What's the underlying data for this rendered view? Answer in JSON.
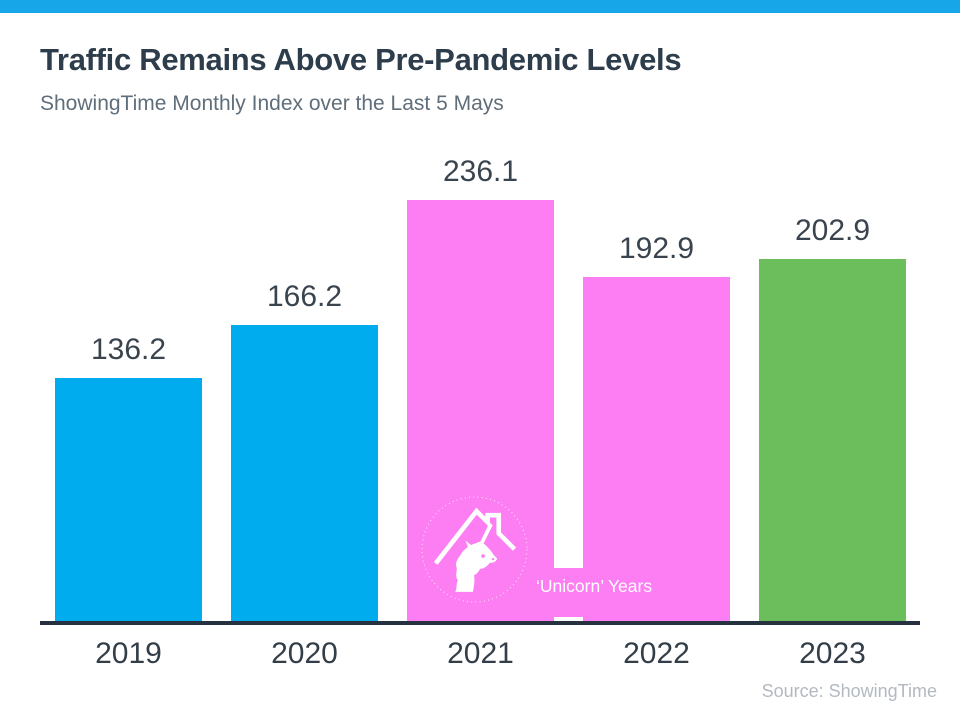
{
  "page": {
    "title": "Traffic Remains Above Pre-Pandemic Levels",
    "subtitle": "ShowingTime Monthly Index over the Last 5 Mays",
    "source": "Source: ShowingTime"
  },
  "annotation": {
    "label": "‘Unicorn’ Years",
    "logo": "unicorn-house-logo",
    "applies_to": [
      "2021",
      "2022"
    ]
  },
  "colors": {
    "top_strip": "#17A7E9",
    "blue_bar": "#00ACEE",
    "pink_bar": "#FD7DF2",
    "green_bar": "#6CBE5C",
    "axis": "#263240",
    "title_text": "#2E3D4B",
    "subtitle_text": "#5F6E7A",
    "label_text": "#3A444E",
    "source_text": "#B2B9C0",
    "annotation_text": "#FFFFFF"
  },
  "chart_data": {
    "type": "bar",
    "categories": [
      "2019",
      "2020",
      "2021",
      "2022",
      "2023"
    ],
    "values": [
      136.2,
      166.2,
      236.1,
      192.9,
      202.9
    ],
    "bar_colors": [
      "#00ACEE",
      "#00ACEE",
      "#FD7DF2",
      "#FD7DF2",
      "#6CBE5C"
    ],
    "title": "Traffic Remains Above Pre-Pandemic Levels",
    "subtitle": "ShowingTime Monthly Index over the Last 5 Mays",
    "xlabel": "",
    "ylabel": "",
    "ylim": [
      0,
      250
    ],
    "grid": false,
    "legend": false,
    "value_labels_shown": true,
    "annotation": {
      "text": "‘Unicorn’ Years",
      "applies_to": [
        "2021",
        "2022"
      ]
    },
    "source": "Source: ShowingTime"
  }
}
